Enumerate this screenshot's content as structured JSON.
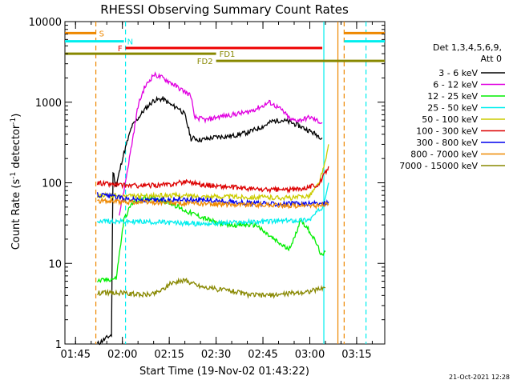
{
  "chart_data": {
    "type": "line",
    "title": "RHESSI Observing Summary Count Rates",
    "xlabel": "Start Time (19-Nov-02 01:43:22)",
    "ylabel_main": "Count Rate (s",
    "ylabel_sup1": "-1",
    "ylabel_mid": " detector",
    "ylabel_sup2": "-1",
    "ylabel_end": ")",
    "y_scale": "log",
    "ylim": [
      1,
      10000
    ],
    "xlim_minutes": [
      -3.4,
      99
    ],
    "x_ticks": [
      {
        "t": 0,
        "label": "01:45"
      },
      {
        "t": 15,
        "label": "02:00"
      },
      {
        "t": 30,
        "label": "02:15"
      },
      {
        "t": 45,
        "label": "02:30"
      },
      {
        "t": 60,
        "label": "02:45"
      },
      {
        "t": 75,
        "label": "03:00"
      },
      {
        "t": 90,
        "label": "03:15"
      }
    ],
    "y_ticks": [
      {
        "v": 1,
        "label": "1"
      },
      {
        "v": 10,
        "label": "10"
      },
      {
        "v": 100,
        "label": "100"
      },
      {
        "v": 1000,
        "label": "1000"
      },
      {
        "v": 10000,
        "label": "10000"
      }
    ],
    "legend_title_1": "Det 1,3,4,5,6,9,",
    "legend_title_2": "Att 0",
    "legend_position": "right",
    "series": [
      {
        "name": "3 - 6 keV",
        "color": "#000000",
        "x": [
          7,
          11.5,
          12,
          13,
          15,
          18,
          22,
          25,
          28,
          31,
          33,
          35,
          37,
          38,
          39.5,
          42,
          45,
          50,
          55,
          60,
          63,
          66,
          69,
          72,
          75,
          79
        ],
        "y": [
          1,
          1.3,
          140,
          90,
          200,
          500,
          800,
          1050,
          1100,
          900,
          850,
          700,
          350,
          360,
          340,
          350,
          370,
          380,
          420,
          500,
          580,
          600,
          560,
          500,
          440,
          360
        ]
      },
      {
        "name": "6 - 12 keV",
        "color": "#e000e0",
        "x": [
          14,
          15.5,
          18,
          20,
          22,
          25,
          28,
          31,
          33,
          35,
          37,
          38,
          42,
          45,
          50,
          55,
          60,
          62,
          64,
          66,
          69,
          72,
          75,
          79
        ],
        "y": [
          40,
          80,
          300,
          900,
          1500,
          2200,
          2000,
          1700,
          1500,
          1350,
          1200,
          650,
          600,
          650,
          700,
          750,
          900,
          1000,
          900,
          800,
          600,
          600,
          650,
          550
        ]
      },
      {
        "name": "12 - 25 keV",
        "color": "#00ee00",
        "x": [
          7,
          13,
          15.5,
          18,
          22,
          25,
          28,
          31,
          35,
          40,
          45,
          50,
          55,
          58,
          60,
          62,
          65,
          68,
          70,
          72,
          75,
          77,
          79,
          80
        ],
        "y": [
          6,
          6.5,
          35,
          55,
          65,
          65,
          60,
          55,
          45,
          38,
          32,
          30,
          30,
          30,
          25,
          22,
          18,
          15,
          20,
          35,
          25,
          18,
          12,
          14
        ]
      },
      {
        "name": "25 - 50 keV",
        "color": "#00eeee",
        "x": [
          7,
          15,
          22,
          30,
          40,
          50,
          60,
          70,
          75,
          79,
          81
        ],
        "y": [
          34,
          33,
          33,
          32,
          31,
          32,
          33,
          34,
          35,
          50,
          100
        ]
      },
      {
        "name": "50 - 100 keV",
        "color": "#cccc00",
        "x": [
          7,
          10,
          15,
          22,
          30,
          40,
          50,
          60,
          70,
          75,
          78,
          80,
          81
        ],
        "y": [
          68,
          70,
          68,
          68,
          70,
          68,
          67,
          66,
          65,
          70,
          100,
          180,
          300
        ]
      },
      {
        "name": "100 - 300 keV",
        "color": "#dd0000",
        "x": [
          7,
          15,
          22,
          30,
          36,
          40,
          50,
          60,
          70,
          78,
          81
        ],
        "y": [
          100,
          93,
          92,
          95,
          105,
          95,
          88,
          82,
          82,
          95,
          160
        ]
      },
      {
        "name": "300 - 800 keV",
        "color": "#0000ee",
        "x": [
          7,
          15,
          22,
          30,
          40,
          50,
          60,
          70,
          78,
          81
        ],
        "y": [
          72,
          65,
          60,
          62,
          62,
          58,
          55,
          55,
          55,
          58
        ]
      },
      {
        "name": "800 - 7000 keV",
        "color": "#ee8800",
        "x": [
          7,
          15,
          22,
          30,
          40,
          50,
          60,
          70,
          78,
          81
        ],
        "y": [
          60,
          58,
          57,
          56,
          55,
          54,
          53,
          52,
          52,
          55
        ]
      },
      {
        "name": "7000 - 15000 keV",
        "color": "#888800",
        "x": [
          7,
          15,
          20,
          25,
          28,
          31,
          35,
          40,
          45,
          50,
          55,
          60,
          65,
          70,
          75,
          80
        ],
        "y": [
          4.3,
          4.3,
          4.1,
          4.2,
          4.8,
          5.8,
          6.2,
          5.2,
          4.8,
          4.6,
          4.1,
          4,
          4.1,
          4.3,
          4.5,
          5
        ]
      }
    ],
    "flags": [
      {
        "label": "S",
        "color": "#ee8800",
        "t_start": -3.4,
        "t_end": 6.5,
        "level": 7200
      },
      {
        "label": "N",
        "color": "#00eeee",
        "t_start": -3.4,
        "t_end": 15.5,
        "level": 5700
      },
      {
        "label": "F",
        "color": "#ee0000",
        "t_start": 16,
        "t_end": 79,
        "level": 4700
      },
      {
        "label": "FD1",
        "color": "#888800",
        "t_start": -3.4,
        "t_end": 45,
        "level": 4000
      },
      {
        "label": "FD2",
        "color": "#888800",
        "t_start": 45,
        "t_end": 99,
        "level": 3250
      }
    ],
    "flags_post": [
      {
        "color": "#ee8800",
        "t_start": 86,
        "t_end": 99,
        "level": 7200
      },
      {
        "color": "#00eeee",
        "t_start": 86,
        "t_end": 99,
        "level": 5700
      }
    ],
    "vlines": [
      {
        "t": 6.5,
        "color": "#ee8800",
        "dashed": true
      },
      {
        "t": 16,
        "color": "#00eeee",
        "dashed": true
      },
      {
        "t": 79.5,
        "color": "#00eeee",
        "dashed": false
      },
      {
        "t": 84,
        "color": "#ee8800",
        "dashed": false
      },
      {
        "t": 86,
        "color": "#ee8800",
        "dashed": true
      },
      {
        "t": 93,
        "color": "#00eeee",
        "dashed": true
      }
    ]
  },
  "footer_date": "21-Oct-2021 12:28"
}
